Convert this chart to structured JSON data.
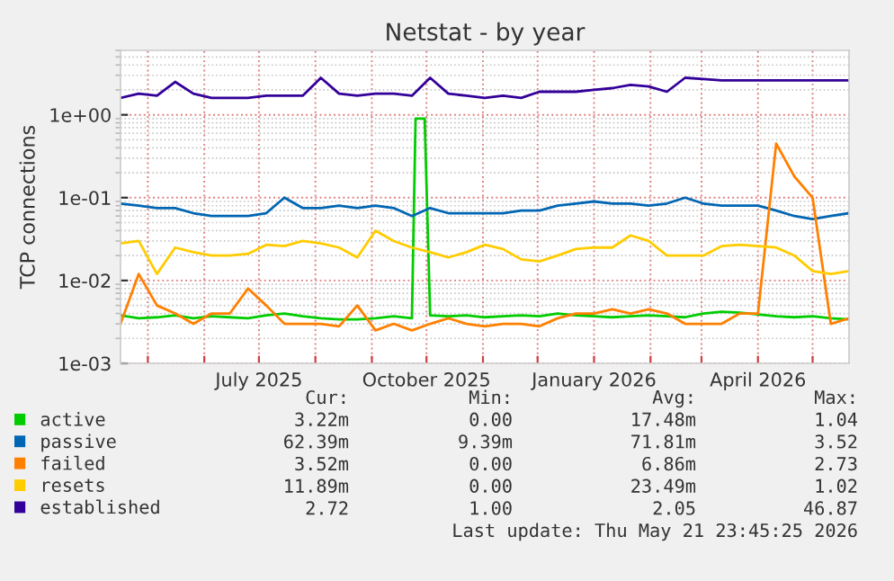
{
  "chart_data": {
    "type": "line",
    "title": "Netstat - by year",
    "ylabel": "TCP connections",
    "log": "y",
    "grid": true,
    "legend": "bottom",
    "line_style": "solid",
    "marker": "none",
    "ylim": [
      0.001,
      6
    ],
    "yticks": [
      {
        "value": 0.001,
        "label": "1e-03"
      },
      {
        "value": 0.01,
        "label": "1e-02"
      },
      {
        "value": 0.1,
        "label": "1e-01"
      },
      {
        "value": 1,
        "label": "1e+00"
      }
    ],
    "xlim": [
      "2025-04-16",
      "2026-05-21"
    ],
    "xticks": [
      {
        "value": "2025-05-01",
        "label": null
      },
      {
        "value": "2025-06-01",
        "label": null
      },
      {
        "value": "2025-07-01",
        "label": "July 2025"
      },
      {
        "value": "2025-08-01",
        "label": null
      },
      {
        "value": "2025-09-01",
        "label": null
      },
      {
        "value": "2025-10-01",
        "label": "October 2025"
      },
      {
        "value": "2025-11-01",
        "label": null
      },
      {
        "value": "2025-12-01",
        "label": null
      },
      {
        "value": "2026-01-01",
        "label": "January 2026"
      },
      {
        "value": "2026-02-01",
        "label": null
      },
      {
        "value": "2026-03-01",
        "label": null
      },
      {
        "value": "2026-04-01",
        "label": "April 2026"
      },
      {
        "value": "2026-05-01",
        "label": null
      }
    ],
    "x": [
      "2025-04-16",
      "2025-04-26",
      "2025-05-06",
      "2025-05-16",
      "2025-05-26",
      "2025-06-05",
      "2025-06-15",
      "2025-06-25",
      "2025-07-05",
      "2025-07-15",
      "2025-07-25",
      "2025-08-04",
      "2025-08-14",
      "2025-08-24",
      "2025-09-03",
      "2025-09-13",
      "2025-09-23",
      "2025-10-03",
      "2025-10-13",
      "2025-10-23",
      "2025-11-02",
      "2025-11-12",
      "2025-11-22",
      "2025-12-02",
      "2025-12-12",
      "2025-12-22",
      "2026-01-01",
      "2026-01-11",
      "2026-01-21",
      "2026-01-31",
      "2026-02-10",
      "2026-02-20",
      "2026-03-02",
      "2026-03-12",
      "2026-03-22",
      "2026-04-01",
      "2026-04-11",
      "2026-04-21",
      "2026-05-01",
      "2026-05-11",
      "2026-05-21"
    ],
    "series": [
      {
        "name": "active",
        "color": "#00cc00",
        "x": [
          "2025-04-16",
          "2025-04-26",
          "2025-05-06",
          "2025-05-16",
          "2025-05-26",
          "2025-06-05",
          "2025-06-15",
          "2025-06-25",
          "2025-07-05",
          "2025-07-15",
          "2025-07-25",
          "2025-08-04",
          "2025-08-14",
          "2025-08-24",
          "2025-09-03",
          "2025-09-13",
          "2025-09-23",
          "2025-09-25",
          "2025-09-30",
          "2025-10-03",
          "2025-10-13",
          "2025-10-23",
          "2025-11-02",
          "2025-11-12",
          "2025-11-22",
          "2025-12-02",
          "2025-12-12",
          "2025-12-22",
          "2026-01-01",
          "2026-01-11",
          "2026-01-21",
          "2026-01-31",
          "2026-02-10",
          "2026-02-20",
          "2026-03-02",
          "2026-03-12",
          "2026-03-22",
          "2026-04-01",
          "2026-04-11",
          "2026-04-21",
          "2026-05-01",
          "2026-05-11",
          "2026-05-21"
        ],
        "values": [
          0.0038,
          0.0035,
          0.0036,
          0.0038,
          0.0035,
          0.0037,
          0.0036,
          0.0035,
          0.0038,
          0.004,
          0.0037,
          0.0035,
          0.0034,
          0.0034,
          0.0035,
          0.0037,
          0.0035,
          0.9,
          0.9,
          0.0038,
          0.0037,
          0.0038,
          0.0036,
          0.0037,
          0.0038,
          0.0037,
          0.004,
          0.0038,
          0.0037,
          0.0036,
          0.0037,
          0.0038,
          0.0037,
          0.0036,
          0.004,
          0.0042,
          0.0041,
          0.0039,
          0.0037,
          0.0036,
          0.0037,
          0.0035,
          0.0034
        ]
      },
      {
        "name": "passive",
        "color": "#0066b3",
        "values": [
          0.085,
          0.08,
          0.075,
          0.075,
          0.065,
          0.06,
          0.06,
          0.06,
          0.065,
          0.1,
          0.075,
          0.075,
          0.08,
          0.075,
          0.08,
          0.075,
          0.06,
          0.075,
          0.065,
          0.065,
          0.065,
          0.065,
          0.07,
          0.07,
          0.08,
          0.085,
          0.09,
          0.085,
          0.085,
          0.08,
          0.085,
          0.1,
          0.085,
          0.08,
          0.08,
          0.08,
          0.07,
          0.06,
          0.055,
          0.06,
          0.065
        ]
      },
      {
        "name": "failed",
        "color": "#ff8000",
        "values": [
          0.003,
          0.012,
          0.005,
          0.004,
          0.003,
          0.004,
          0.004,
          0.008,
          0.005,
          0.003,
          0.003,
          0.003,
          0.0028,
          0.005,
          0.0025,
          0.003,
          0.0025,
          0.003,
          0.0035,
          0.003,
          0.0028,
          0.003,
          0.003,
          0.0028,
          0.0035,
          0.004,
          0.004,
          0.0045,
          0.004,
          0.0045,
          0.004,
          0.003,
          0.003,
          0.003,
          0.004,
          0.004,
          0.45,
          0.18,
          0.1,
          0.003,
          0.0035
        ]
      },
      {
        "name": "resets",
        "color": "#ffcc00",
        "values": [
          0.028,
          0.03,
          0.012,
          0.025,
          0.022,
          0.02,
          0.02,
          0.021,
          0.027,
          0.026,
          0.03,
          0.028,
          0.025,
          0.019,
          0.04,
          0.03,
          0.025,
          0.022,
          0.019,
          0.022,
          0.027,
          0.024,
          0.018,
          0.017,
          0.02,
          0.024,
          0.025,
          0.025,
          0.035,
          0.03,
          0.02,
          0.02,
          0.02,
          0.026,
          0.027,
          0.026,
          0.025,
          0.02,
          0.013,
          0.012,
          0.013
        ]
      },
      {
        "name": "established",
        "color": "#330099",
        "values": [
          1.6,
          1.8,
          1.7,
          2.5,
          1.8,
          1.6,
          1.6,
          1.6,
          1.7,
          1.7,
          1.7,
          2.8,
          1.8,
          1.7,
          1.8,
          1.8,
          1.7,
          2.8,
          1.8,
          1.7,
          1.6,
          1.7,
          1.6,
          1.9,
          1.9,
          1.9,
          2.0,
          2.1,
          2.3,
          2.2,
          1.9,
          2.8,
          2.7,
          2.6,
          2.6,
          2.6,
          2.6,
          2.6,
          2.6,
          2.6,
          2.6
        ]
      }
    ],
    "annotations": [
      "Cur:",
      "Min:",
      "Avg:",
      "Max:",
      "3.22m",
      "0.00",
      "17.48m",
      "1.04",
      "62.39m",
      "9.39m",
      "71.81m",
      "3.52",
      "3.52m",
      "0.00",
      "6.86m",
      "2.73",
      "11.89m",
      "0.00",
      "23.49m",
      "1.02",
      "2.72",
      "1.00",
      "2.05",
      "46.87",
      "Last update: Thu May 21 23:45:25 2026"
    ]
  }
}
